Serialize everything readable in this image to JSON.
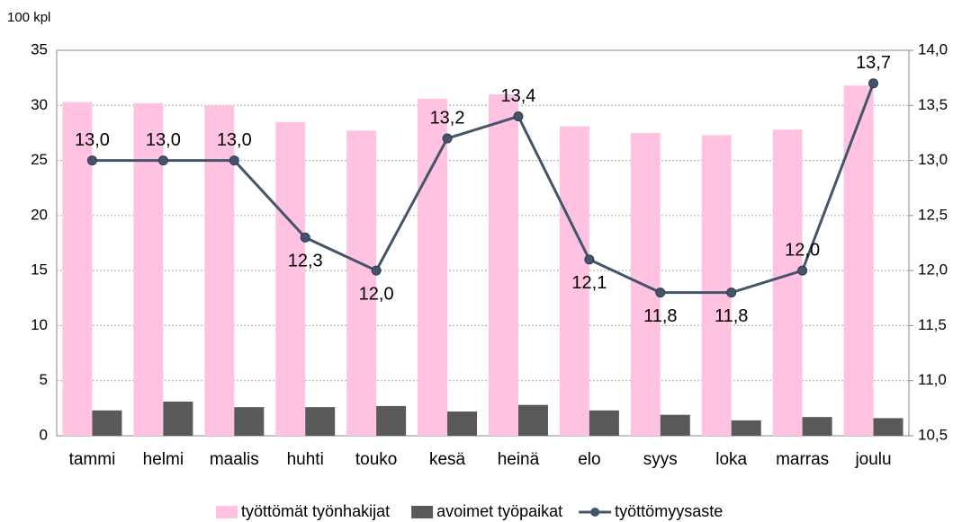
{
  "chart_data": {
    "type": "bar-line",
    "y_axis_label": "100 kpl",
    "categories": [
      "tammi",
      "helmi",
      "maalis",
      "huhti",
      "touko",
      "kesä",
      "heinä",
      "elo",
      "syys",
      "loka",
      "marras",
      "joulu"
    ],
    "series": [
      {
        "name": "työttömät työnhakijat",
        "color": "#ffc3e1",
        "type": "bar",
        "values": [
          30.3,
          30.2,
          30.0,
          28.5,
          27.7,
          30.6,
          31.0,
          28.1,
          27.5,
          27.3,
          27.8,
          31.8
        ]
      },
      {
        "name": "avoimet työpaikat",
        "color": "#595959",
        "type": "bar",
        "values": [
          2.3,
          3.1,
          2.6,
          2.6,
          2.7,
          2.2,
          2.8,
          2.3,
          1.9,
          1.4,
          1.7,
          1.6
        ]
      },
      {
        "name": "työttömyysaste",
        "color": "#44546a",
        "type": "line",
        "axis": "y2",
        "values": [
          13.0,
          13.0,
          13.0,
          12.3,
          12.0,
          13.2,
          13.4,
          12.1,
          11.8,
          11.8,
          12.0,
          13.7
        ],
        "value_labels": [
          "13,0",
          "13,0",
          "13,0",
          "12,3",
          "12,0",
          "13,2",
          "13,4",
          "12,1",
          "11,8",
          "11,8",
          "12,0",
          "13,7"
        ]
      }
    ],
    "ylim": [
      0,
      35
    ],
    "yticks": [
      0,
      5,
      10,
      15,
      20,
      25,
      30,
      35
    ],
    "y2lim": [
      10.5,
      14.0
    ],
    "y2ticks": [
      {
        "value": 10.5,
        "label": "10,5"
      },
      {
        "value": 11.0,
        "label": "11,0"
      },
      {
        "value": 11.5,
        "label": "11,5"
      },
      {
        "value": 12.0,
        "label": "12,0"
      },
      {
        "value": 12.5,
        "label": "12,5"
      },
      {
        "value": 13.0,
        "label": "13,0"
      },
      {
        "value": 13.5,
        "label": "13,5"
      },
      {
        "value": 14.0,
        "label": "14,0"
      }
    ],
    "grid": true,
    "legend": "bottom"
  }
}
